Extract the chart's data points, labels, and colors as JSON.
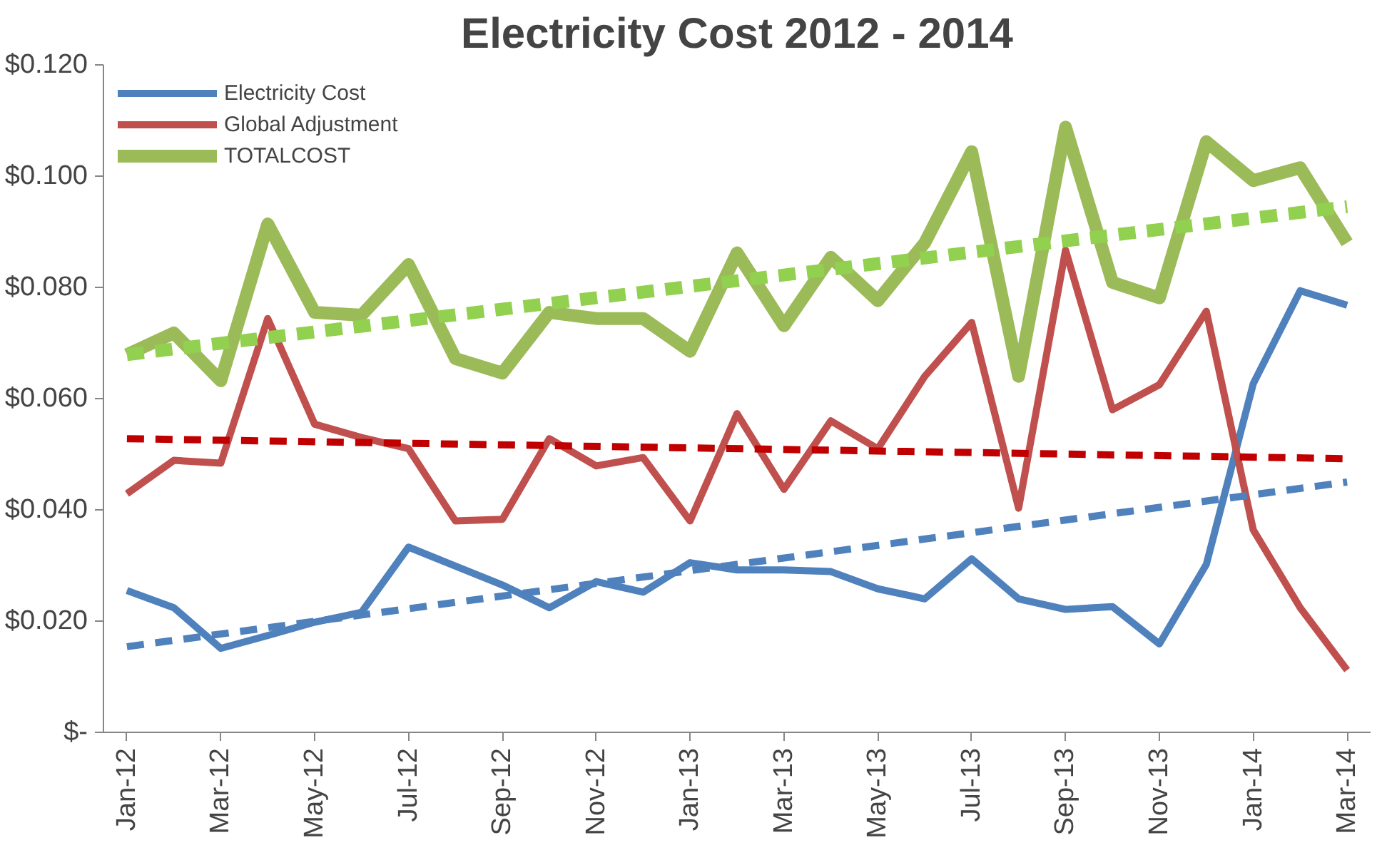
{
  "chart_data": {
    "type": "line",
    "title": "Electricity Cost 2012 - 2014",
    "categories": [
      "Jan-12",
      null,
      "Mar-12",
      null,
      "May-12",
      null,
      "Jul-12",
      null,
      "Sep-12",
      null,
      "Nov-12",
      null,
      "Jan-13",
      null,
      "Mar-13",
      null,
      "May-13",
      null,
      "Jul-13",
      null,
      "Sep-13",
      null,
      "Nov-13",
      null,
      "Jan-14",
      null,
      "Mar-14"
    ],
    "series": [
      {
        "name": "Electricity Cost",
        "color": "#4f81bd",
        "values": [
          0.0255,
          0.0224,
          0.0151,
          0.0174,
          0.0198,
          0.0216,
          0.0333,
          0.0299,
          0.0265,
          0.0224,
          0.0271,
          0.0252,
          0.0305,
          0.0292,
          0.0292,
          0.0289,
          0.0258,
          0.024,
          0.0312,
          0.024,
          0.0221,
          0.0226,
          0.0159,
          0.0302,
          0.0627,
          0.0794,
          0.0768
        ]
      },
      {
        "name": "Global Adjustment",
        "color": "#c0504d",
        "values": [
          0.0429,
          0.0489,
          0.0484,
          0.0744,
          0.0554,
          0.053,
          0.051,
          0.038,
          0.0383,
          0.0528,
          0.0479,
          0.0494,
          0.038,
          0.0573,
          0.0437,
          0.056,
          0.051,
          0.064,
          0.0737,
          0.0403,
          0.0867,
          0.058,
          0.0625,
          0.0757,
          0.0364,
          0.0224,
          0.0112
        ]
      },
      {
        "name": "TOTALCOST",
        "color": "#9bbb59",
        "values": [
          0.0679,
          0.0718,
          0.0632,
          0.0914,
          0.0755,
          0.075,
          0.0841,
          0.0672,
          0.0646,
          0.0755,
          0.0744,
          0.0744,
          0.0685,
          0.0862,
          0.0731,
          0.0854,
          0.0776,
          0.088,
          0.1044,
          0.064,
          0.1088,
          0.0809,
          0.0781,
          0.1062,
          0.0992,
          0.1015,
          0.088
        ]
      },
      {
        "color": "#4f81bd",
        "line_style": "dashed",
        "x": [
          "Jan-12",
          "Mar-14"
        ],
        "values": [
          0.0154,
          0.045
        ]
      },
      {
        "color": "#c00000",
        "line_style": "dashed",
        "x": [
          "Jan-12",
          "Mar-14"
        ],
        "values": [
          0.0528,
          0.0492
        ]
      },
      {
        "color": "#92d050",
        "line_style": "dashed",
        "x": [
          "Jan-12",
          "Mar-14"
        ],
        "values": [
          0.0679,
          0.0945
        ]
      }
    ],
    "ylim": [
      0,
      0.12
    ],
    "yticks": [
      {
        "value": 0,
        "label": "$-"
      },
      {
        "value": 0.02,
        "label": "$0.020"
      },
      {
        "value": 0.04,
        "label": "$0.040"
      },
      {
        "value": 0.06,
        "label": "$0.060"
      },
      {
        "value": 0.08,
        "label": "$0.080"
      },
      {
        "value": 0.1,
        "label": "$0.100"
      },
      {
        "value": 0.12,
        "label": "$0.120"
      }
    ],
    "grid": false,
    "legend": "top left",
    "marker": "none",
    "line_style": "solid"
  }
}
